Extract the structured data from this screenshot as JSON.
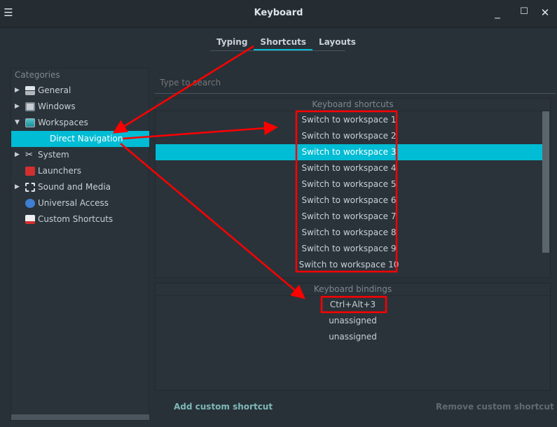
{
  "window": {
    "title": "Keyboard",
    "menu_icon": "hamburger-icon",
    "minimize_icon": "minimize-icon",
    "maximize_icon": "maximize-icon",
    "close_icon": "close-icon"
  },
  "tabs": [
    {
      "label": "Typing"
    },
    {
      "label": "Shortcuts",
      "active": true
    },
    {
      "label": "Layouts"
    }
  ],
  "categories": {
    "header": "Categories",
    "items": [
      {
        "label": "General",
        "expander": "collapsed",
        "icon": "general-icon"
      },
      {
        "label": "Windows",
        "expander": "collapsed",
        "icon": "windows-icon"
      },
      {
        "label": "Workspaces",
        "expander": "expanded",
        "icon": "workspaces-icon"
      },
      {
        "label": "Direct Navigation",
        "selected": true
      },
      {
        "label": "System",
        "expander": "collapsed",
        "icon": "system-icon"
      },
      {
        "label": "Launchers",
        "icon": "launchers-icon"
      },
      {
        "label": "Sound and Media",
        "expander": "collapsed",
        "icon": "sound-media-icon"
      },
      {
        "label": "Universal Access",
        "icon": "universal-access-icon"
      },
      {
        "label": "Custom Shortcuts",
        "icon": "custom-shortcuts-icon"
      }
    ]
  },
  "search": {
    "placeholder": "Type to search"
  },
  "shortcuts": {
    "header": "Keyboard shortcuts",
    "items": [
      "Switch to workspace 1",
      "Switch to workspace 2",
      "Switch to workspace 3",
      "Switch to workspace 4",
      "Switch to workspace 5",
      "Switch to workspace 6",
      "Switch to workspace 7",
      "Switch to workspace 8",
      "Switch to workspace 9",
      "Switch to workspace 10"
    ],
    "selected_index": 2
  },
  "bindings": {
    "header": "Keyboard bindings",
    "items": [
      "Ctrl+Alt+3",
      "unassigned",
      "unassigned"
    ]
  },
  "buttons": {
    "add": "Add custom shortcut",
    "remove": "Remove custom shortcut"
  },
  "colors": {
    "accent": "#00bcd4",
    "annotation": "#ff0000",
    "background": "#283138"
  }
}
